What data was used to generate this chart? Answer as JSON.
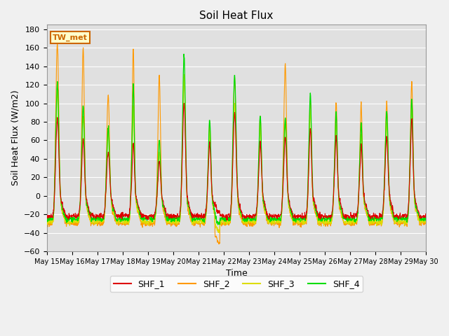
{
  "title": "Soil Heat Flux",
  "xlabel": "Time",
  "ylabel": "Soil Heat Flux (W/m2)",
  "ylim": [
    -60,
    185
  ],
  "yticks": [
    -60,
    -40,
    -20,
    0,
    20,
    40,
    60,
    80,
    100,
    120,
    140,
    160,
    180
  ],
  "x_tick_labels": [
    "May 15",
    "May 16",
    "May 17",
    "May 18",
    "May 19",
    "May 20",
    "May 21",
    "May 22",
    "May 23",
    "May 24",
    "May 25",
    "May 26",
    "May 27",
    "May 28",
    "May 29",
    "May 30"
  ],
  "colors": {
    "SHF_1": "#dd0000",
    "SHF_2": "#ff9900",
    "SHF_3": "#dddd00",
    "SHF_4": "#00dd00"
  },
  "bg_color": "#e0e0e0",
  "grid_color": "#ffffff",
  "fig_bg": "#f0f0f0",
  "annotation_text": "TW_met",
  "annotation_bg": "#ffffcc",
  "annotation_border": "#cc6600",
  "n_days": 15,
  "n_per_day": 96
}
